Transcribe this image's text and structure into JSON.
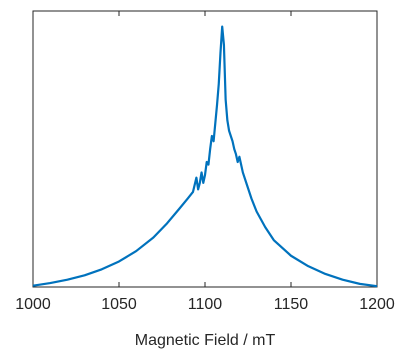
{
  "chart_data": {
    "type": "line",
    "title": "",
    "xlabel": "Magnetic Field / mT",
    "ylabel": "",
    "xlim": [
      1000,
      1200
    ],
    "ylim": [
      0,
      1.06
    ],
    "x_ticks": [
      "1000",
      "1050",
      "1100",
      "1150",
      "1200"
    ],
    "x_tick_values": [
      1000,
      1050,
      1100,
      1150,
      1200
    ],
    "y_ticks_visible": false,
    "grid": false,
    "legend": "none",
    "series_color": "#0072BD",
    "series": [
      {
        "x": [
          1000,
          1010,
          1020,
          1030,
          1040,
          1050,
          1060,
          1070,
          1078,
          1085,
          1090,
          1093,
          1095,
          1096,
          1097,
          1098,
          1099,
          1100,
          1101,
          1102,
          1103,
          1104,
          1105,
          1106,
          1107,
          1108,
          1109,
          1110,
          1111,
          1112,
          1113,
          1114,
          1115,
          1116,
          1117,
          1118,
          1119,
          1120,
          1121,
          1122,
          1124,
          1127,
          1130,
          1135,
          1140,
          1150,
          1160,
          1170,
          1180,
          1190,
          1200
        ],
        "y": [
          0.005,
          0.015,
          0.028,
          0.045,
          0.068,
          0.098,
          0.138,
          0.19,
          0.245,
          0.3,
          0.34,
          0.365,
          0.42,
          0.375,
          0.4,
          0.44,
          0.4,
          0.43,
          0.48,
          0.47,
          0.53,
          0.58,
          0.56,
          0.63,
          0.7,
          0.78,
          0.9,
          1.0,
          0.93,
          0.72,
          0.64,
          0.6,
          0.58,
          0.56,
          0.53,
          0.51,
          0.48,
          0.5,
          0.47,
          0.44,
          0.4,
          0.34,
          0.29,
          0.23,
          0.18,
          0.12,
          0.08,
          0.05,
          0.028,
          0.012,
          0.003
        ]
      }
    ]
  }
}
